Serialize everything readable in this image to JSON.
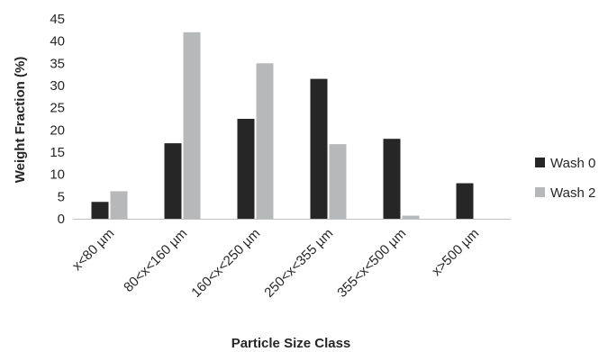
{
  "chart_data": {
    "type": "bar",
    "title": "",
    "xlabel": "Particle Size Class",
    "ylabel": "Weight Fraction (%)",
    "ylim": [
      0,
      45
    ],
    "yticks": [
      0,
      5,
      10,
      15,
      20,
      25,
      30,
      35,
      40,
      45
    ],
    "grid": false,
    "legend_position": "right",
    "categories": [
      "x<80 µm",
      "80<x<160 µm",
      "160<x<250 µm",
      "250<x<355 µm",
      "355<x<500 µm",
      "x>500 µm"
    ],
    "series": [
      {
        "name": "Wash 0",
        "color": "#262626",
        "values": [
          3.8,
          17,
          22.5,
          31.5,
          18,
          8
        ]
      },
      {
        "name": "Wash 2",
        "color": "#b7b8ba",
        "values": [
          6.2,
          42,
          35,
          16.8,
          0.7,
          0
        ]
      }
    ]
  }
}
